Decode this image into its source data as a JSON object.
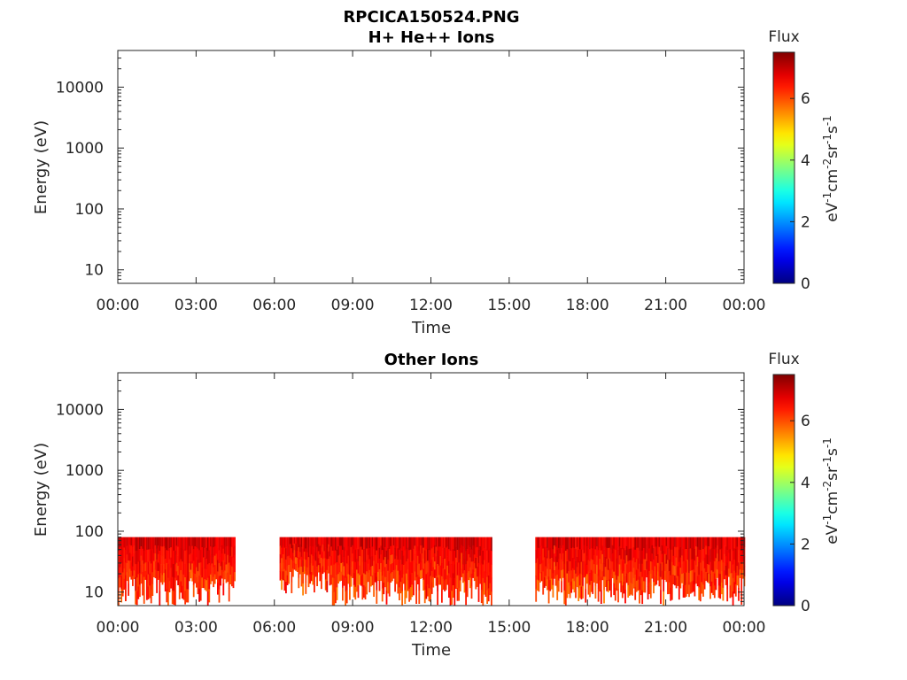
{
  "figure": {
    "filename": "RPCICA150524.PNG"
  },
  "chart_data": [
    {
      "type": "heatmap",
      "title": "H+ He++ Ions",
      "xlabel": "Time",
      "ylabel": "Energy (eV)",
      "x_ticks": [
        "00:00",
        "03:00",
        "06:00",
        "09:00",
        "12:00",
        "15:00",
        "18:00",
        "21:00",
        "00:00"
      ],
      "x_range_hours": [
        0,
        24
      ],
      "y_scale": "log",
      "y_range_ev": [
        6,
        40000
      ],
      "y_ticks": [
        10,
        100,
        1000,
        10000
      ],
      "y_tick_labels": [
        "10",
        "100",
        "1000",
        "10000"
      ],
      "colorbar": {
        "title": "Flux",
        "unit_label": "eV-1cm-2sr-1s-1",
        "range": [
          0,
          7.5
        ],
        "ticks": [
          0,
          2,
          4,
          6
        ],
        "colormap": "jet"
      },
      "segments": []
    },
    {
      "type": "heatmap",
      "title": "Other Ions",
      "xlabel": "Time",
      "ylabel": "Energy (eV)",
      "x_ticks": [
        "00:00",
        "03:00",
        "06:00",
        "09:00",
        "12:00",
        "15:00",
        "18:00",
        "21:00",
        "00:00"
      ],
      "x_range_hours": [
        0,
        24
      ],
      "y_scale": "log",
      "y_range_ev": [
        6,
        40000
      ],
      "y_ticks": [
        10,
        100,
        1000,
        10000
      ],
      "y_tick_labels": [
        "10",
        "100",
        "1000",
        "10000"
      ],
      "colorbar": {
        "title": "Flux",
        "unit_label": "eV-1cm-2sr-1s-1",
        "range": [
          0,
          7.5
        ],
        "ticks": [
          0,
          2,
          4,
          6
        ],
        "colormap": "jet"
      },
      "segments": [
        {
          "start_hr": 0.0,
          "end_hr": 4.5,
          "emin_ev": 6,
          "emax_ev": 80,
          "flux_range": [
            5.0,
            7.0
          ]
        },
        {
          "start_hr": 6.2,
          "end_hr": 8.1,
          "emin_ev": 8,
          "emax_ev": 80,
          "flux_range": [
            4.8,
            7.0
          ]
        },
        {
          "start_hr": 8.1,
          "end_hr": 14.3,
          "emin_ev": 6,
          "emax_ev": 80,
          "flux_range": [
            4.8,
            7.0
          ]
        },
        {
          "start_hr": 16.0,
          "end_hr": 24.0,
          "emin_ev": 6,
          "emax_ev": 80,
          "flux_range": [
            4.8,
            7.0
          ]
        }
      ]
    }
  ]
}
